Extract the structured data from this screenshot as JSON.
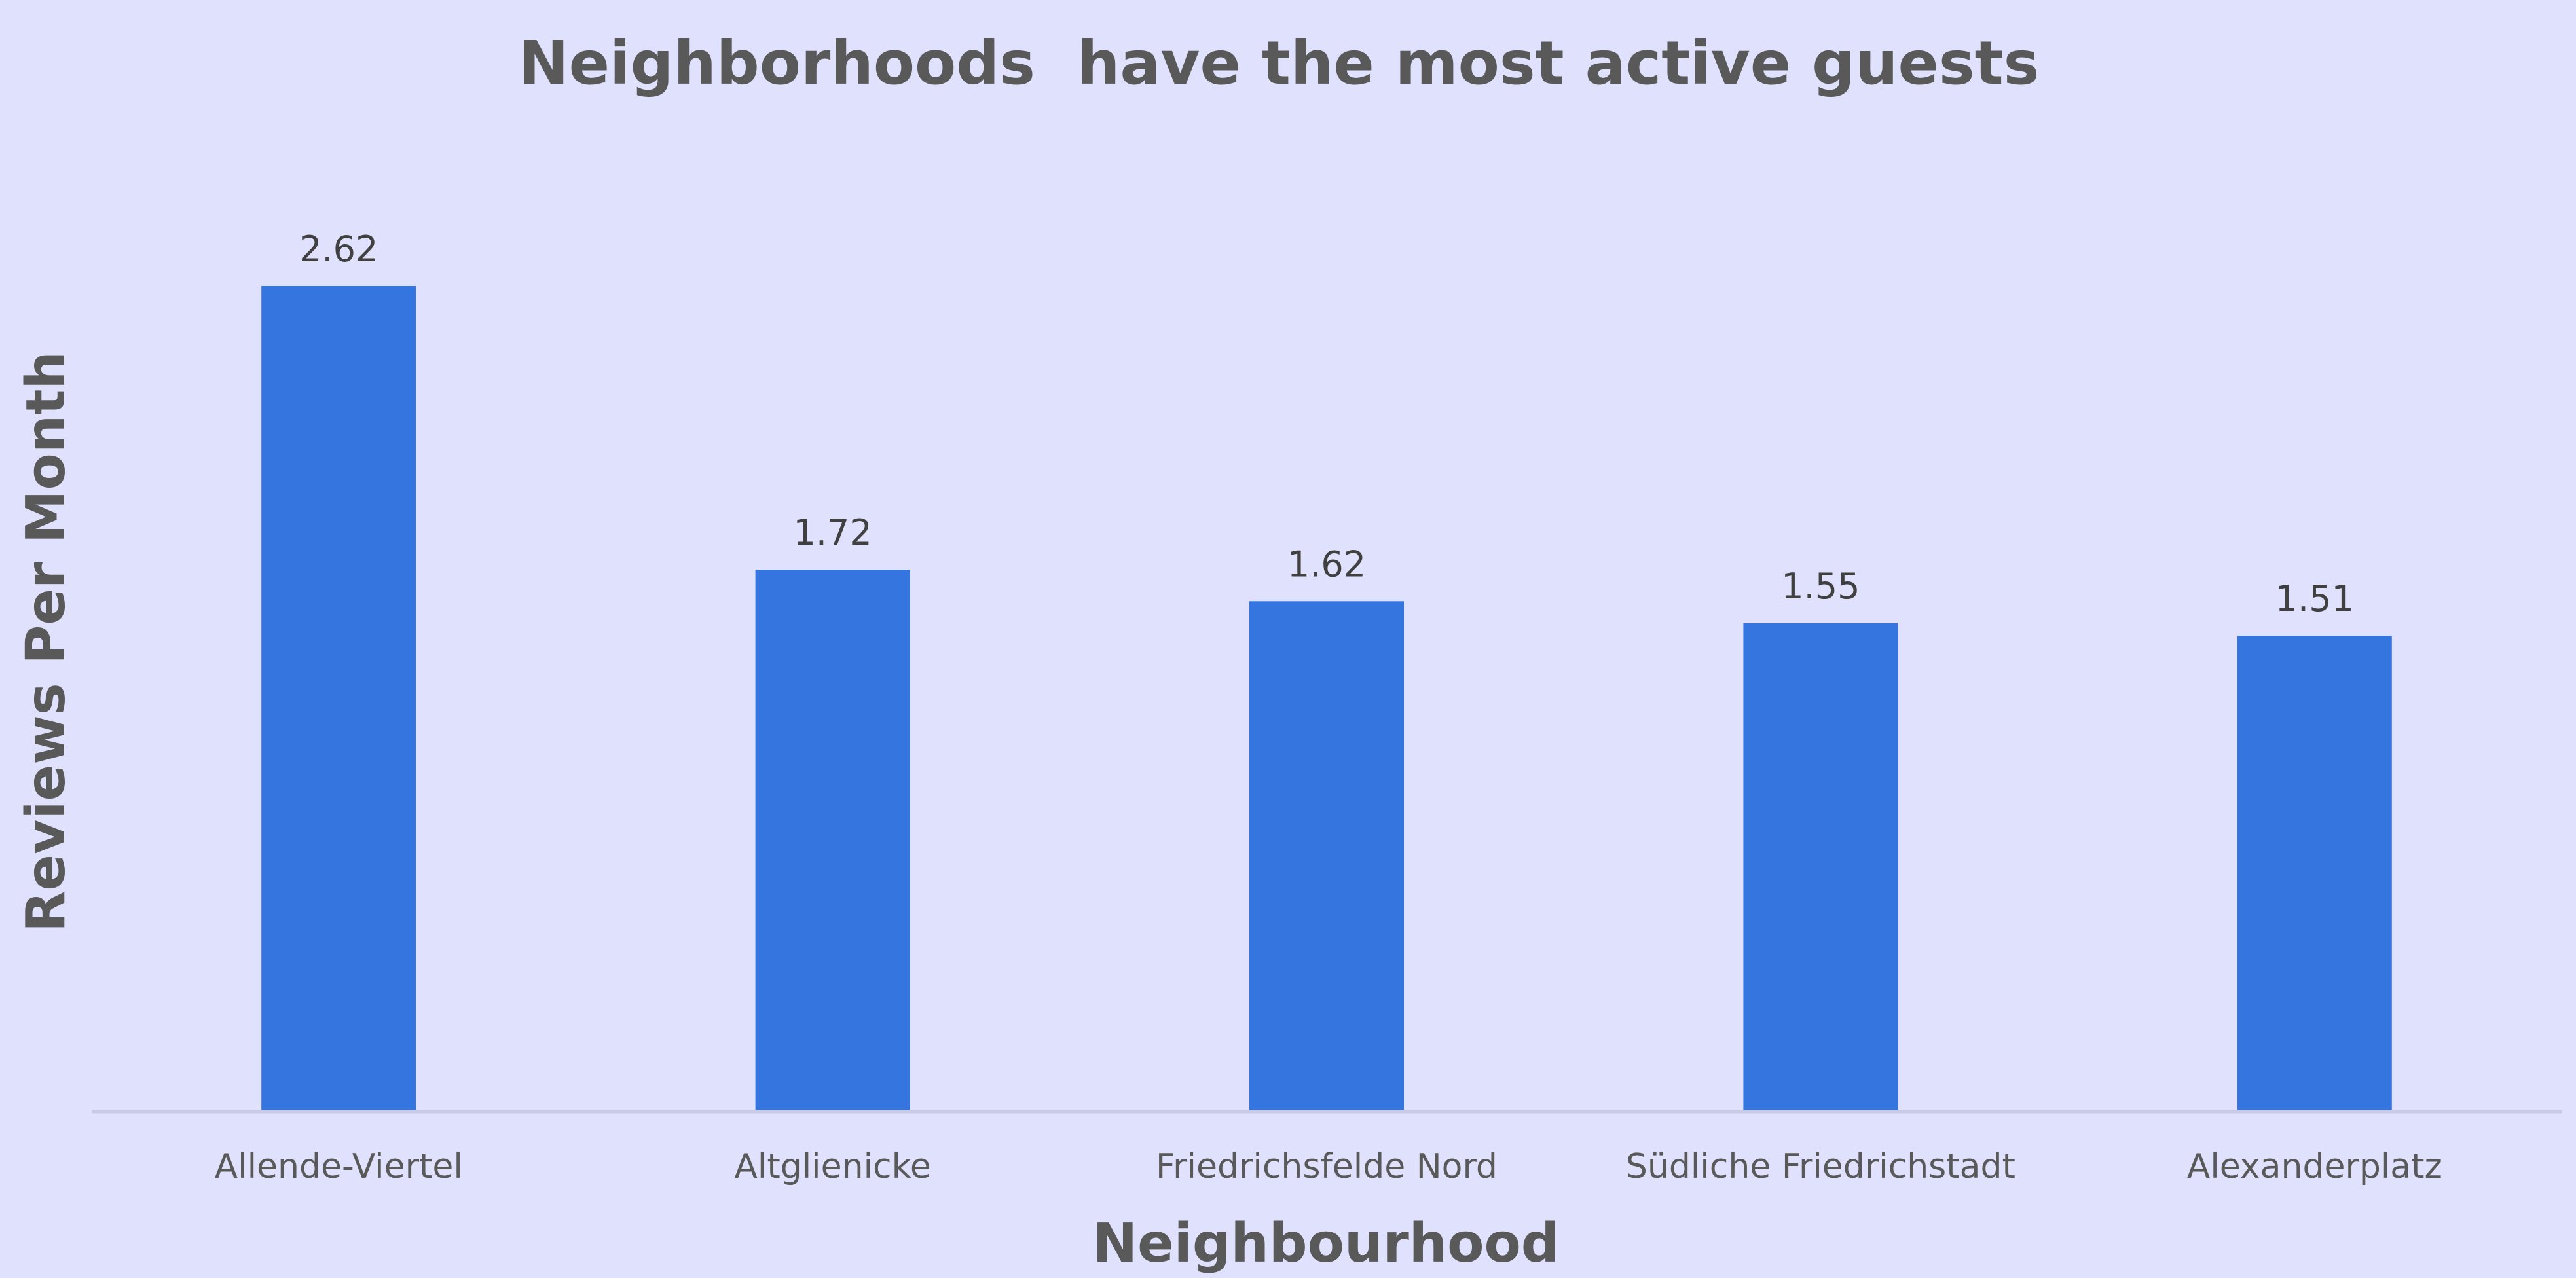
{
  "chart_data": {
    "type": "bar",
    "title": "Neighborhoods  have the most active guests",
    "xlabel": "Neighbourhood",
    "ylabel": "Reviews Per Month",
    "categories": [
      "Allende-Viertel",
      "Altglienicke",
      "Friedrichsfelde Nord",
      "Südliche Friedrichstadt",
      "Alexanderplatz"
    ],
    "values": [
      2.62,
      1.72,
      1.62,
      1.55,
      1.51
    ],
    "data_labels": [
      "2.62",
      "1.72",
      "1.62",
      "1.55",
      "1.51"
    ],
    "ylim": [
      0,
      2.62
    ],
    "grid": false,
    "legend": "none",
    "colors": {
      "bar": "#3575e0",
      "background": "#dfe1fd",
      "text": "#595959",
      "label": "#404040"
    }
  }
}
